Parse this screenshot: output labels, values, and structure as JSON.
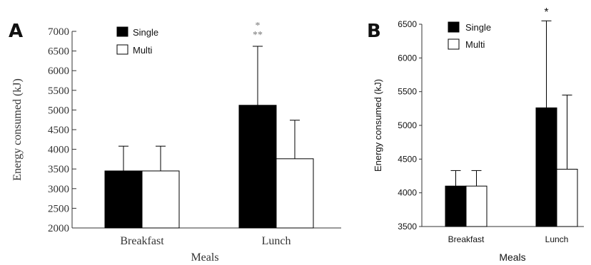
{
  "chart_data": [
    {
      "panel_label": "A",
      "type": "bar",
      "xlabel": "Meals",
      "ylabel": "Energy consumed (kJ)",
      "categories": [
        "Breakfast",
        "Lunch"
      ],
      "ylim": [
        2000,
        7000
      ],
      "yticks": [
        "2000",
        "2500",
        "3000",
        "3500",
        "4000",
        "4500",
        "5000",
        "5500",
        "6000",
        "6500",
        "7000"
      ],
      "series": [
        {
          "name": "Single",
          "color": "#000000",
          "values": [
            3450,
            5120
          ],
          "error_plus": [
            630,
            1500
          ]
        },
        {
          "name": "Multi",
          "color": "#ffffff",
          "values": [
            3450,
            3760
          ],
          "error_plus": [
            630,
            980
          ]
        }
      ],
      "annotations": [
        {
          "category": "Lunch",
          "lines": [
            "*",
            "**"
          ]
        }
      ],
      "legend_placement": "top-left",
      "grid": false
    },
    {
      "panel_label": "B",
      "type": "bar",
      "xlabel": "Meals",
      "ylabel": "Energy consumed (kJ)",
      "categories": [
        "Breakfast",
        "Lunch"
      ],
      "ylim": [
        3500,
        6500
      ],
      "yticks": [
        "3500",
        "4000",
        "4500",
        "5000",
        "5500",
        "6000",
        "6500"
      ],
      "series": [
        {
          "name": "Single",
          "color": "#000000",
          "values": [
            4100,
            5260
          ],
          "error_plus": [
            230,
            1290
          ]
        },
        {
          "name": "Multi",
          "color": "#ffffff",
          "values": [
            4100,
            4350
          ],
          "error_plus": [
            230,
            1100
          ]
        }
      ],
      "annotations": [
        {
          "category": "Lunch",
          "lines": [
            "*"
          ]
        }
      ],
      "legend_placement": "top-left",
      "grid": false
    }
  ]
}
